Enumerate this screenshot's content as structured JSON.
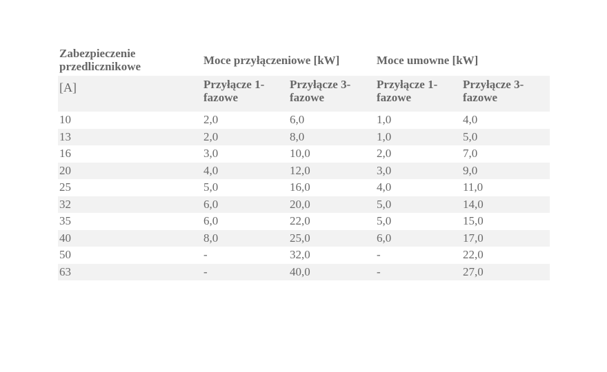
{
  "table": {
    "header": {
      "col1_label": "Zabezpieczenie przedlicznikowe",
      "group1_label": "Moce przyłączeniowe [kW]",
      "group2_label": "Moce umowne [kW]"
    },
    "subheader": {
      "unit": "[A]",
      "cols": [
        "Przyłącze 1-fazowe",
        "Przyłącze 3-fazowe",
        "Przyłącze 1-fazowe",
        "Przyłącze 3-fazowe"
      ]
    },
    "rows": [
      [
        "10",
        "2,0",
        "6,0",
        "1,0",
        "4,0"
      ],
      [
        "13",
        "2,0",
        "8,0",
        "1,0",
        "5,0"
      ],
      [
        "16",
        "3,0",
        "10,0",
        "2,0",
        "7,0"
      ],
      [
        "20",
        "4,0",
        "12,0",
        "3,0",
        "9,0"
      ],
      [
        "25",
        "5,0",
        "16,0",
        "4,0",
        "11,0"
      ],
      [
        "32",
        "6,0",
        "20,0",
        "5,0",
        "14,0"
      ],
      [
        "35",
        "6,0",
        "22,0",
        "5,0",
        "15,0"
      ],
      [
        "40",
        "8,0",
        "25,0",
        "6,0",
        "17,0"
      ],
      [
        "50",
        "-",
        "32,0",
        "-",
        "22,0"
      ],
      [
        "63",
        "-",
        "40,0",
        "-",
        "27,0"
      ]
    ]
  },
  "colors": {
    "stripe": "#f2f2f2",
    "text": "#6a6a6a"
  }
}
